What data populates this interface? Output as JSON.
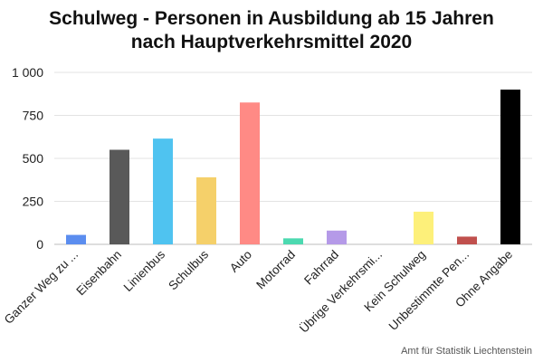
{
  "chart_data": {
    "type": "bar",
    "title_lines": [
      "Schulweg - Personen in Ausbildung ab 15 Jahren",
      "nach Hauptverkehrsmittel 2020"
    ],
    "categories": [
      "Ganzer Weg zu ...",
      "Eisenbahn",
      "Linienbus",
      "Schulbus",
      "Auto",
      "Motorrad",
      "Fahrrad",
      "Übrige Verkehrsmi...",
      "Kein Schulweg",
      "Unbestimmte Pen...",
      "Ohne Angabe"
    ],
    "values": [
      55,
      550,
      615,
      390,
      825,
      35,
      80,
      0,
      190,
      45,
      900
    ],
    "colors": [
      "#5b8def",
      "#595959",
      "#4fc3f0",
      "#f5d06a",
      "#ff8a85",
      "#4cd9b0",
      "#b59ae8",
      "#ffffff",
      "#fdf07a",
      "#c0504d",
      "#000000"
    ],
    "yticks": [
      "0",
      "250",
      "500",
      "750",
      "1 000"
    ],
    "ytick_values": [
      0,
      250,
      500,
      750,
      1000
    ],
    "ylim": [
      0,
      1000
    ],
    "grid": true,
    "xlabel": "",
    "ylabel": ""
  },
  "credit": "Amt für Statistik Liechtenstein"
}
